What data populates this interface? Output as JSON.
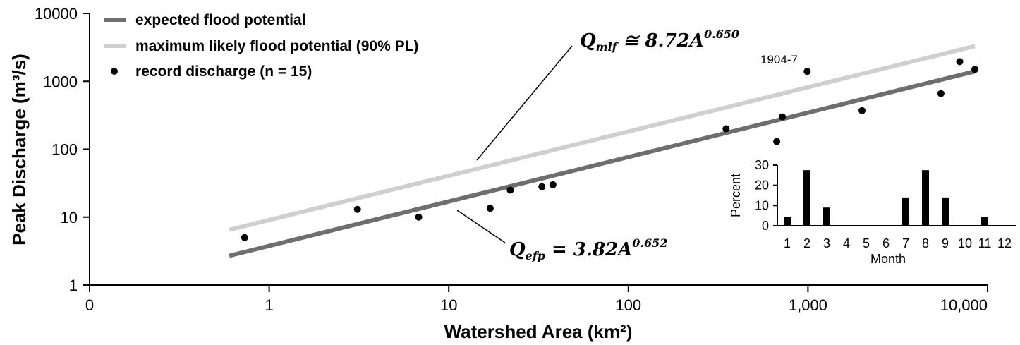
{
  "chart_data": [
    {
      "type": "scatter",
      "x_scale": "log",
      "y_scale": "log",
      "xlabel": "Watershed Area (km²)",
      "ylabel": "Peak Discharge (m³/s)",
      "xlim": [
        0.1,
        10000
      ],
      "ylim": [
        1,
        10000
      ],
      "x_tick_labels": [
        "0",
        "1",
        "10",
        "100",
        "1,000",
        "10,000"
      ],
      "y_tick_labels": [
        "1",
        "10",
        "100",
        "1000",
        "10000"
      ],
      "grid": false,
      "legend_placement": "top-left",
      "legend": [
        {
          "label": "expected flood potential",
          "kind": "line",
          "color": "#6e6e6e"
        },
        {
          "label": "maximum likely flood potential (90% PL)",
          "kind": "line",
          "color": "#cfcfcf"
        },
        {
          "label": "record discharge (n = 15)",
          "kind": "marker",
          "color": "#000000"
        }
      ],
      "series": [
        {
          "name": "expected flood potential",
          "kind": "line",
          "color": "#6e6e6e",
          "equation": {
            "prefix": "Q",
            "sub": "efp",
            "rel": " = ",
            "coef": "3.82A",
            "exp": "0.652"
          },
          "x": [
            0.6,
            8500
          ],
          "y": [
            2.7,
            1400
          ]
        },
        {
          "name": "maximum likely flood potential (90% PL)",
          "kind": "line",
          "color": "#cfcfcf",
          "equation": {
            "prefix": "Q",
            "sub": "mlf",
            "rel": " ≅ ",
            "coef": "8.72A",
            "exp": "0.650"
          },
          "x": [
            0.6,
            8500
          ],
          "y": [
            6.5,
            3300
          ]
        },
        {
          "name": "record discharge (n = 15)",
          "kind": "points",
          "color": "#000000",
          "x": [
            0.73,
            3.1,
            6.8,
            17,
            22,
            33,
            38,
            350,
            670,
            720,
            990,
            2000,
            5500,
            7000,
            8500
          ],
          "y": [
            5,
            13,
            10,
            13.5,
            25,
            28,
            30,
            200,
            130,
            300,
            1400,
            370,
            660,
            1950,
            1500
          ]
        }
      ],
      "annotations": [
        {
          "text": "1904-7",
          "x": 990,
          "y": 1400
        }
      ]
    },
    {
      "type": "bar",
      "xlabel": "Month",
      "ylabel": "Percent",
      "ylim": [
        0,
        30
      ],
      "y_ticks": [
        "0",
        "10",
        "20",
        "30"
      ],
      "categories": [
        "1",
        "2",
        "3",
        "4",
        "5",
        "6",
        "7",
        "8",
        "9",
        "10",
        "11",
        "12"
      ],
      "values": [
        4.5,
        27.5,
        9,
        0,
        0,
        0,
        14,
        27.5,
        14,
        0,
        4.5,
        0
      ],
      "color": "#000000"
    }
  ]
}
